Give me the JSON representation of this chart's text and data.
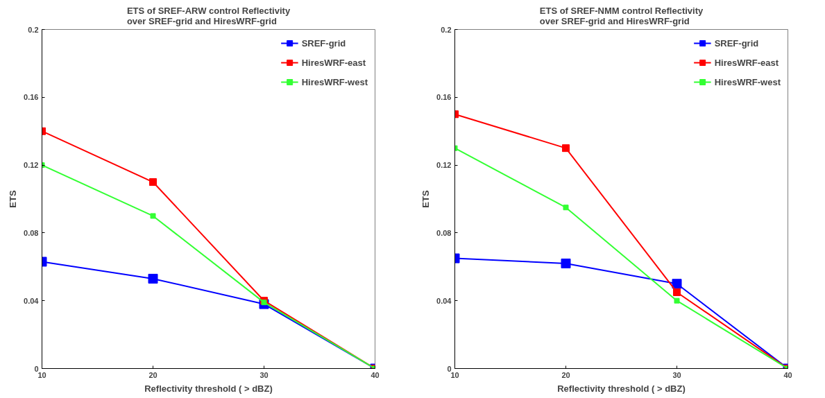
{
  "chart_data": [
    {
      "type": "line",
      "title": "ETS of SREF-ARW control Reflectivity\nover SREF-grid and HiresWRF-grid",
      "xlabel": "Reflectivity threshold ( > dBZ)",
      "ylabel": "ETS",
      "x": [
        10,
        20,
        30,
        40
      ],
      "xlim": [
        10,
        40
      ],
      "xticks": [
        10,
        20,
        30,
        40
      ],
      "ylim": [
        0,
        0.2
      ],
      "yticks": [
        0,
        0.04,
        0.08,
        0.12,
        0.16,
        0.2
      ],
      "grid": false,
      "legend": "top right",
      "marker": "square",
      "line_style": "solid",
      "series": [
        {
          "name": "SREF-grid",
          "color": "#0000ff",
          "values": [
            0.063,
            0.053,
            0.038,
            0.0
          ]
        },
        {
          "name": "HiresWRF-east",
          "color": "#ff0000",
          "values": [
            0.14,
            0.11,
            0.04,
            0.0
          ]
        },
        {
          "name": "HiresWRF-west",
          "color": "#33ff33",
          "values": [
            0.12,
            0.09,
            0.039,
            0.0
          ]
        }
      ]
    },
    {
      "type": "line",
      "title": "ETS of SREF-NMM control Reflectivity\nover SREF-grid  and HiresWRF-grid",
      "xlabel": "Reflectivity threshold ( > dBZ)",
      "ylabel": "ETS",
      "x": [
        10,
        20,
        30,
        40
      ],
      "xlim": [
        10,
        40
      ],
      "xticks": [
        10,
        20,
        30,
        40
      ],
      "ylim": [
        0,
        0.2
      ],
      "yticks": [
        0,
        0.04,
        0.08,
        0.12,
        0.16,
        0.2
      ],
      "grid": false,
      "legend": "top right",
      "marker": "square",
      "line_style": "solid",
      "series": [
        {
          "name": "SREF-grid",
          "color": "#0000ff",
          "values": [
            0.065,
            0.062,
            0.05,
            0.0
          ]
        },
        {
          "name": "HiresWRF-east",
          "color": "#ff0000",
          "values": [
            0.15,
            0.13,
            0.045,
            0.0
          ]
        },
        {
          "name": "HiresWRF-west",
          "color": "#33ff33",
          "values": [
            0.13,
            0.095,
            0.04,
            0.0
          ]
        }
      ]
    }
  ]
}
